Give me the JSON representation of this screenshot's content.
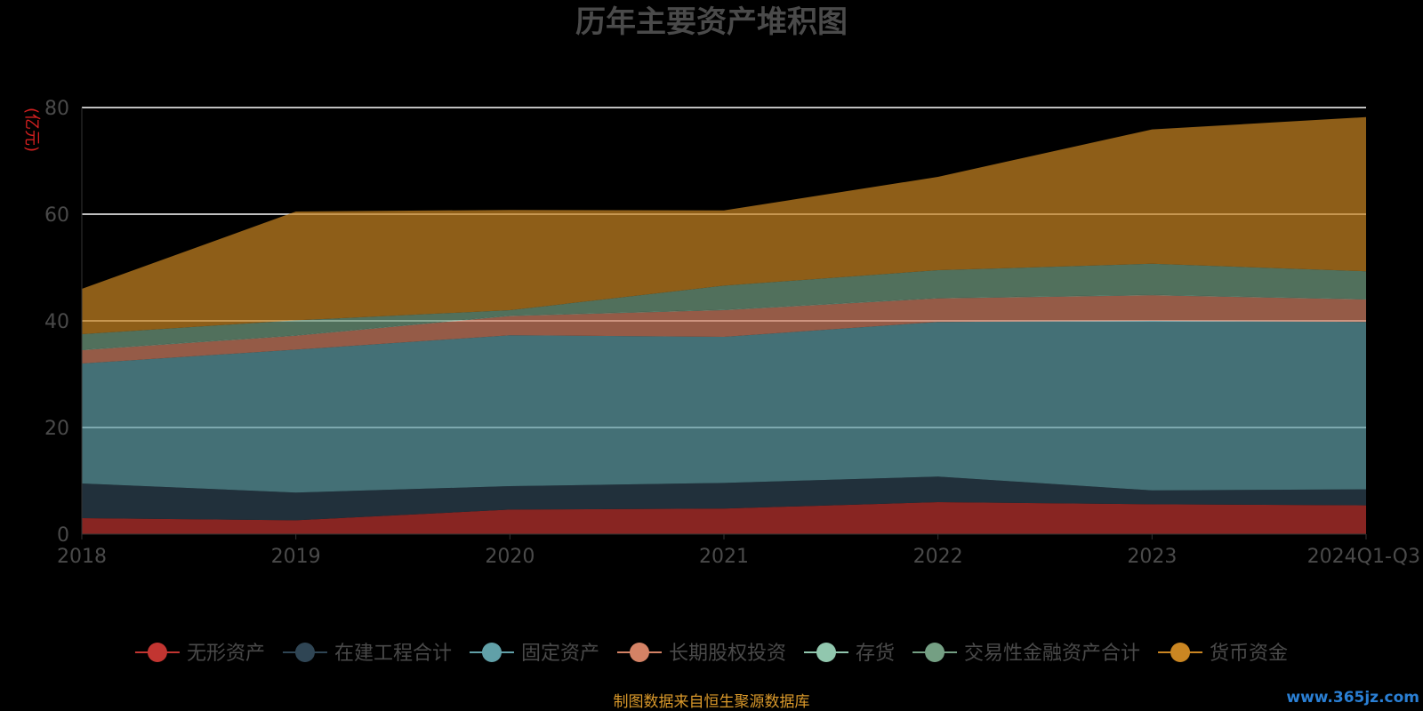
{
  "chart_data": {
    "type": "area",
    "stacked": true,
    "title": "历年主要资产堆积图",
    "ylabel": "(亿元)",
    "ylim": [
      0,
      80
    ],
    "yticks": [
      "0",
      "20",
      "40",
      "60",
      "80"
    ],
    "categories": [
      "2018",
      "2019",
      "2020",
      "2021",
      "2022",
      "2023",
      "2024Q1-Q3"
    ],
    "grid": true,
    "legend_position": "bottom",
    "series": [
      {
        "name": "无形资产",
        "color": "#c23531",
        "values": [
          3.0,
          2.6,
          4.6,
          4.8,
          6.0,
          5.6,
          5.4
        ]
      },
      {
        "name": "在建工程合计",
        "color": "#2f4554",
        "values": [
          6.5,
          5.2,
          4.4,
          4.8,
          4.8,
          2.6,
          3.0
        ]
      },
      {
        "name": "固定资产",
        "color": "#61a0a8",
        "values": [
          22.5,
          26.8,
          28.3,
          27.4,
          29.0,
          31.8,
          31.4
        ]
      },
      {
        "name": "长期股权投资",
        "color": "#d48265",
        "values": [
          2.5,
          2.6,
          3.6,
          5.0,
          4.4,
          4.8,
          4.2
        ]
      },
      {
        "name": "存货",
        "color": "#91c7ae",
        "values": [
          0.1,
          0.1,
          0.1,
          0.1,
          0.1,
          0.1,
          0.1
        ]
      },
      {
        "name": "交易性金融资产合计",
        "color": "#749f83",
        "values": [
          2.9,
          2.8,
          1.0,
          4.5,
          5.2,
          5.8,
          5.2
        ]
      },
      {
        "name": "货币资金",
        "color": "#ca8622",
        "values": [
          8.5,
          20.4,
          18.8,
          14.1,
          17.5,
          25.2,
          28.9
        ]
      }
    ]
  },
  "footer": {
    "source": "制图数据来自恒生聚源数据库",
    "watermark": "www.365jz.com"
  }
}
